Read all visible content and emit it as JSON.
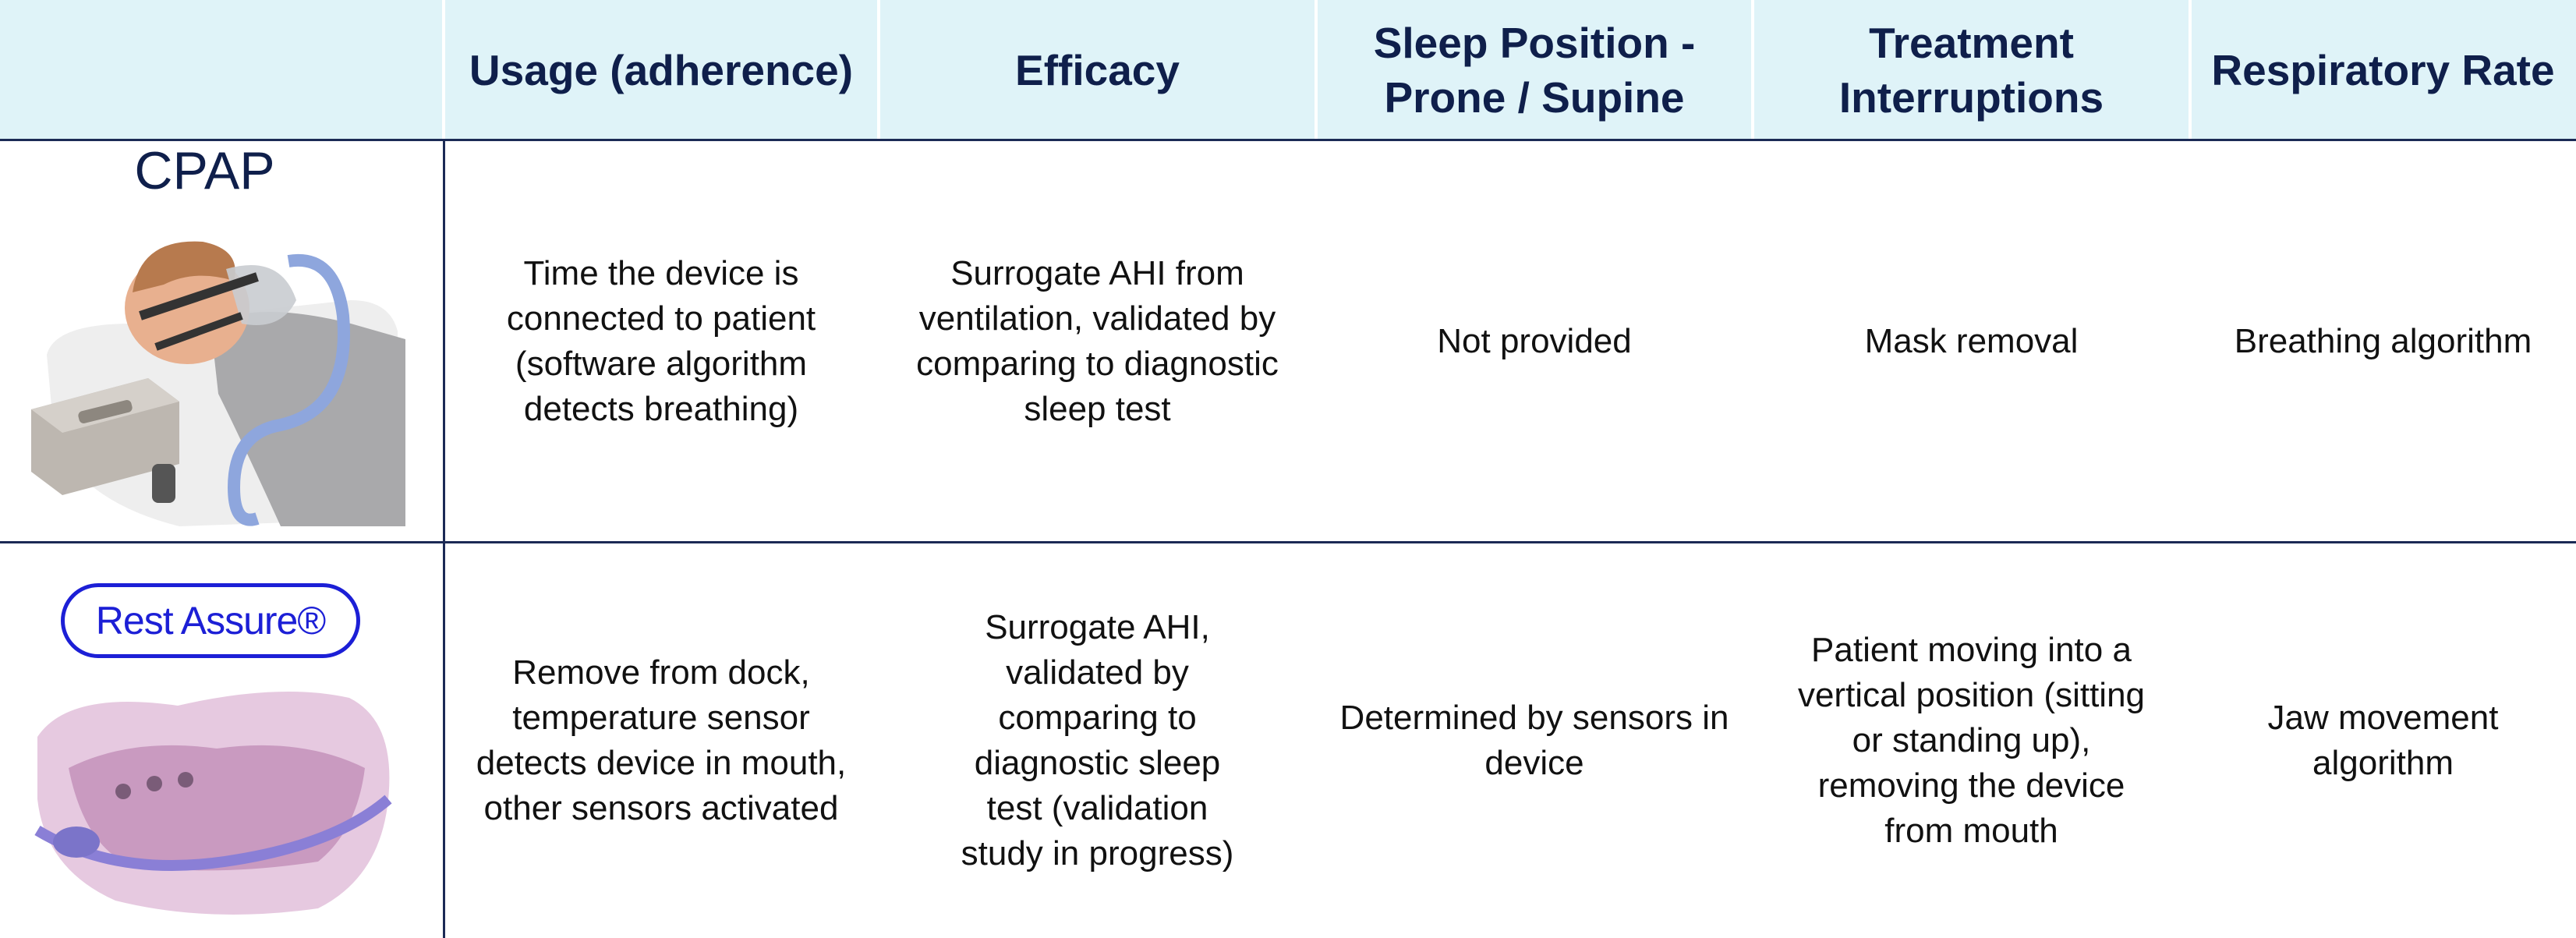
{
  "header": {
    "columns": [
      "Usage (adherence)",
      "Efficacy",
      "Sleep Position - Prone / Supine",
      "Treatment Interruptions",
      "Respiratory Rate"
    ]
  },
  "rows": [
    {
      "label": "CPAP",
      "cells": [
        "Time the device is connected to patient (software algorithm detects breathing)",
        "Surrogate AHI from ventilation, validated by comparing to diagnostic sleep test",
        "Not provided",
        "Mask removal",
        "Breathing algorithm"
      ]
    },
    {
      "label": "Rest Assure®",
      "cells": [
        "Remove from dock, temperature sensor detects device in mouth, other sensors activated",
        "Surrogate AHI, validated by comparing to diagnostic sleep test (validation study in progress)",
        "Determined by sensors in device",
        "Patient moving into a vertical position (sitting or standing up), removing the device from mouth",
        "Jaw movement algorithm"
      ]
    }
  ]
}
